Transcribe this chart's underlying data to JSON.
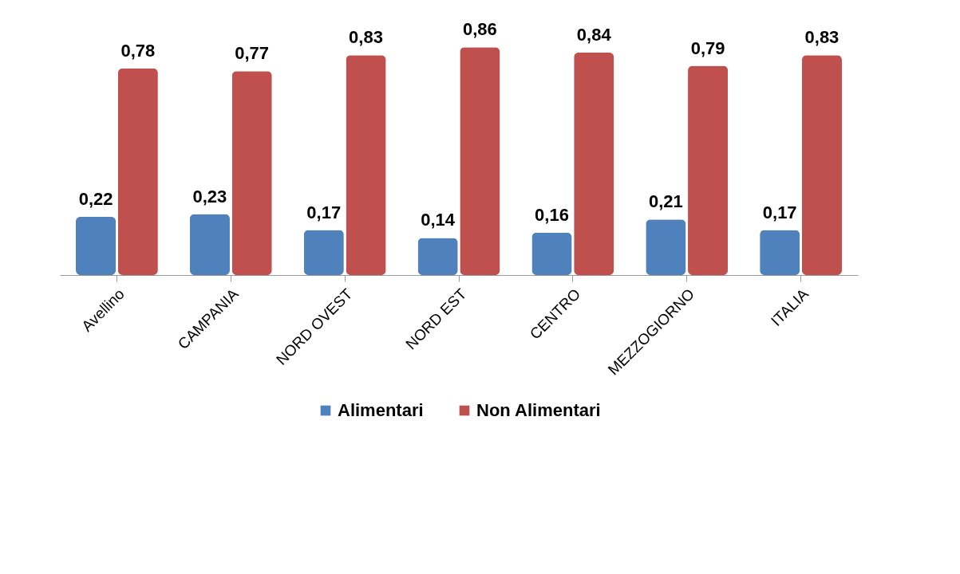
{
  "chart_data": {
    "type": "bar",
    "categories": [
      "Avellino",
      "CAMPANIA",
      "NORD OVEST",
      "NORD EST",
      "CENTRO",
      "MEZZOGIORNO",
      "ITALIA"
    ],
    "series": [
      {
        "name": "Alimentari",
        "color": "#4f81bd",
        "values": [
          0.22,
          0.23,
          0.17,
          0.14,
          0.16,
          0.21,
          0.17
        ],
        "value_labels": [
          "0,22",
          "0,23",
          "0,17",
          "0,14",
          "0,16",
          "0,21",
          "0,17"
        ]
      },
      {
        "name": "Non Alimentari",
        "color": "#c0504d",
        "values": [
          0.78,
          0.77,
          0.83,
          0.86,
          0.84,
          0.79,
          0.83
        ],
        "value_labels": [
          "0,78",
          "0,77",
          "0,83",
          "0,86",
          "0,84",
          "0,79",
          "0,83"
        ]
      }
    ],
    "legend": "bottom"
  }
}
